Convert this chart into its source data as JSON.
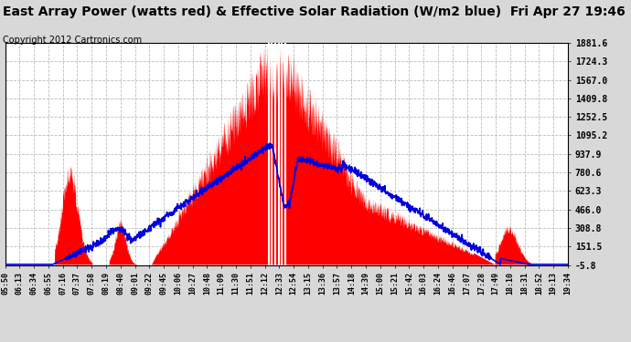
{
  "title": "East Array Power (watts red) & Effective Solar Radiation (W/m2 blue)  Fri Apr 27 19:46",
  "copyright": "Copyright 2012 Cartronics.com",
  "yticks": [
    -5.8,
    151.5,
    308.8,
    466.0,
    623.3,
    780.6,
    937.9,
    1095.2,
    1252.5,
    1409.8,
    1567.0,
    1724.3,
    1881.6
  ],
  "ymin": -5.8,
  "ymax": 1881.6,
  "xtick_labels": [
    "05:50",
    "06:13",
    "06:34",
    "06:55",
    "07:16",
    "07:37",
    "07:58",
    "08:19",
    "08:40",
    "09:01",
    "09:22",
    "09:45",
    "10:06",
    "10:27",
    "10:48",
    "11:09",
    "11:30",
    "11:51",
    "12:12",
    "12:33",
    "12:54",
    "13:15",
    "13:36",
    "13:57",
    "14:18",
    "14:39",
    "15:00",
    "15:21",
    "15:42",
    "16:03",
    "16:24",
    "16:46",
    "17:07",
    "17:28",
    "17:49",
    "18:10",
    "18:31",
    "18:52",
    "19:13",
    "19:34"
  ],
  "fig_bg": "#d8d8d8",
  "plot_bg": "#ffffff",
  "red_color": "#ff0000",
  "blue_color": "#0000dd",
  "grid_color": "#bbbbbb",
  "title_fontsize": 10,
  "copyright_fontsize": 7,
  "yticklabel_fontsize": 7,
  "xticklabel_fontsize": 6
}
